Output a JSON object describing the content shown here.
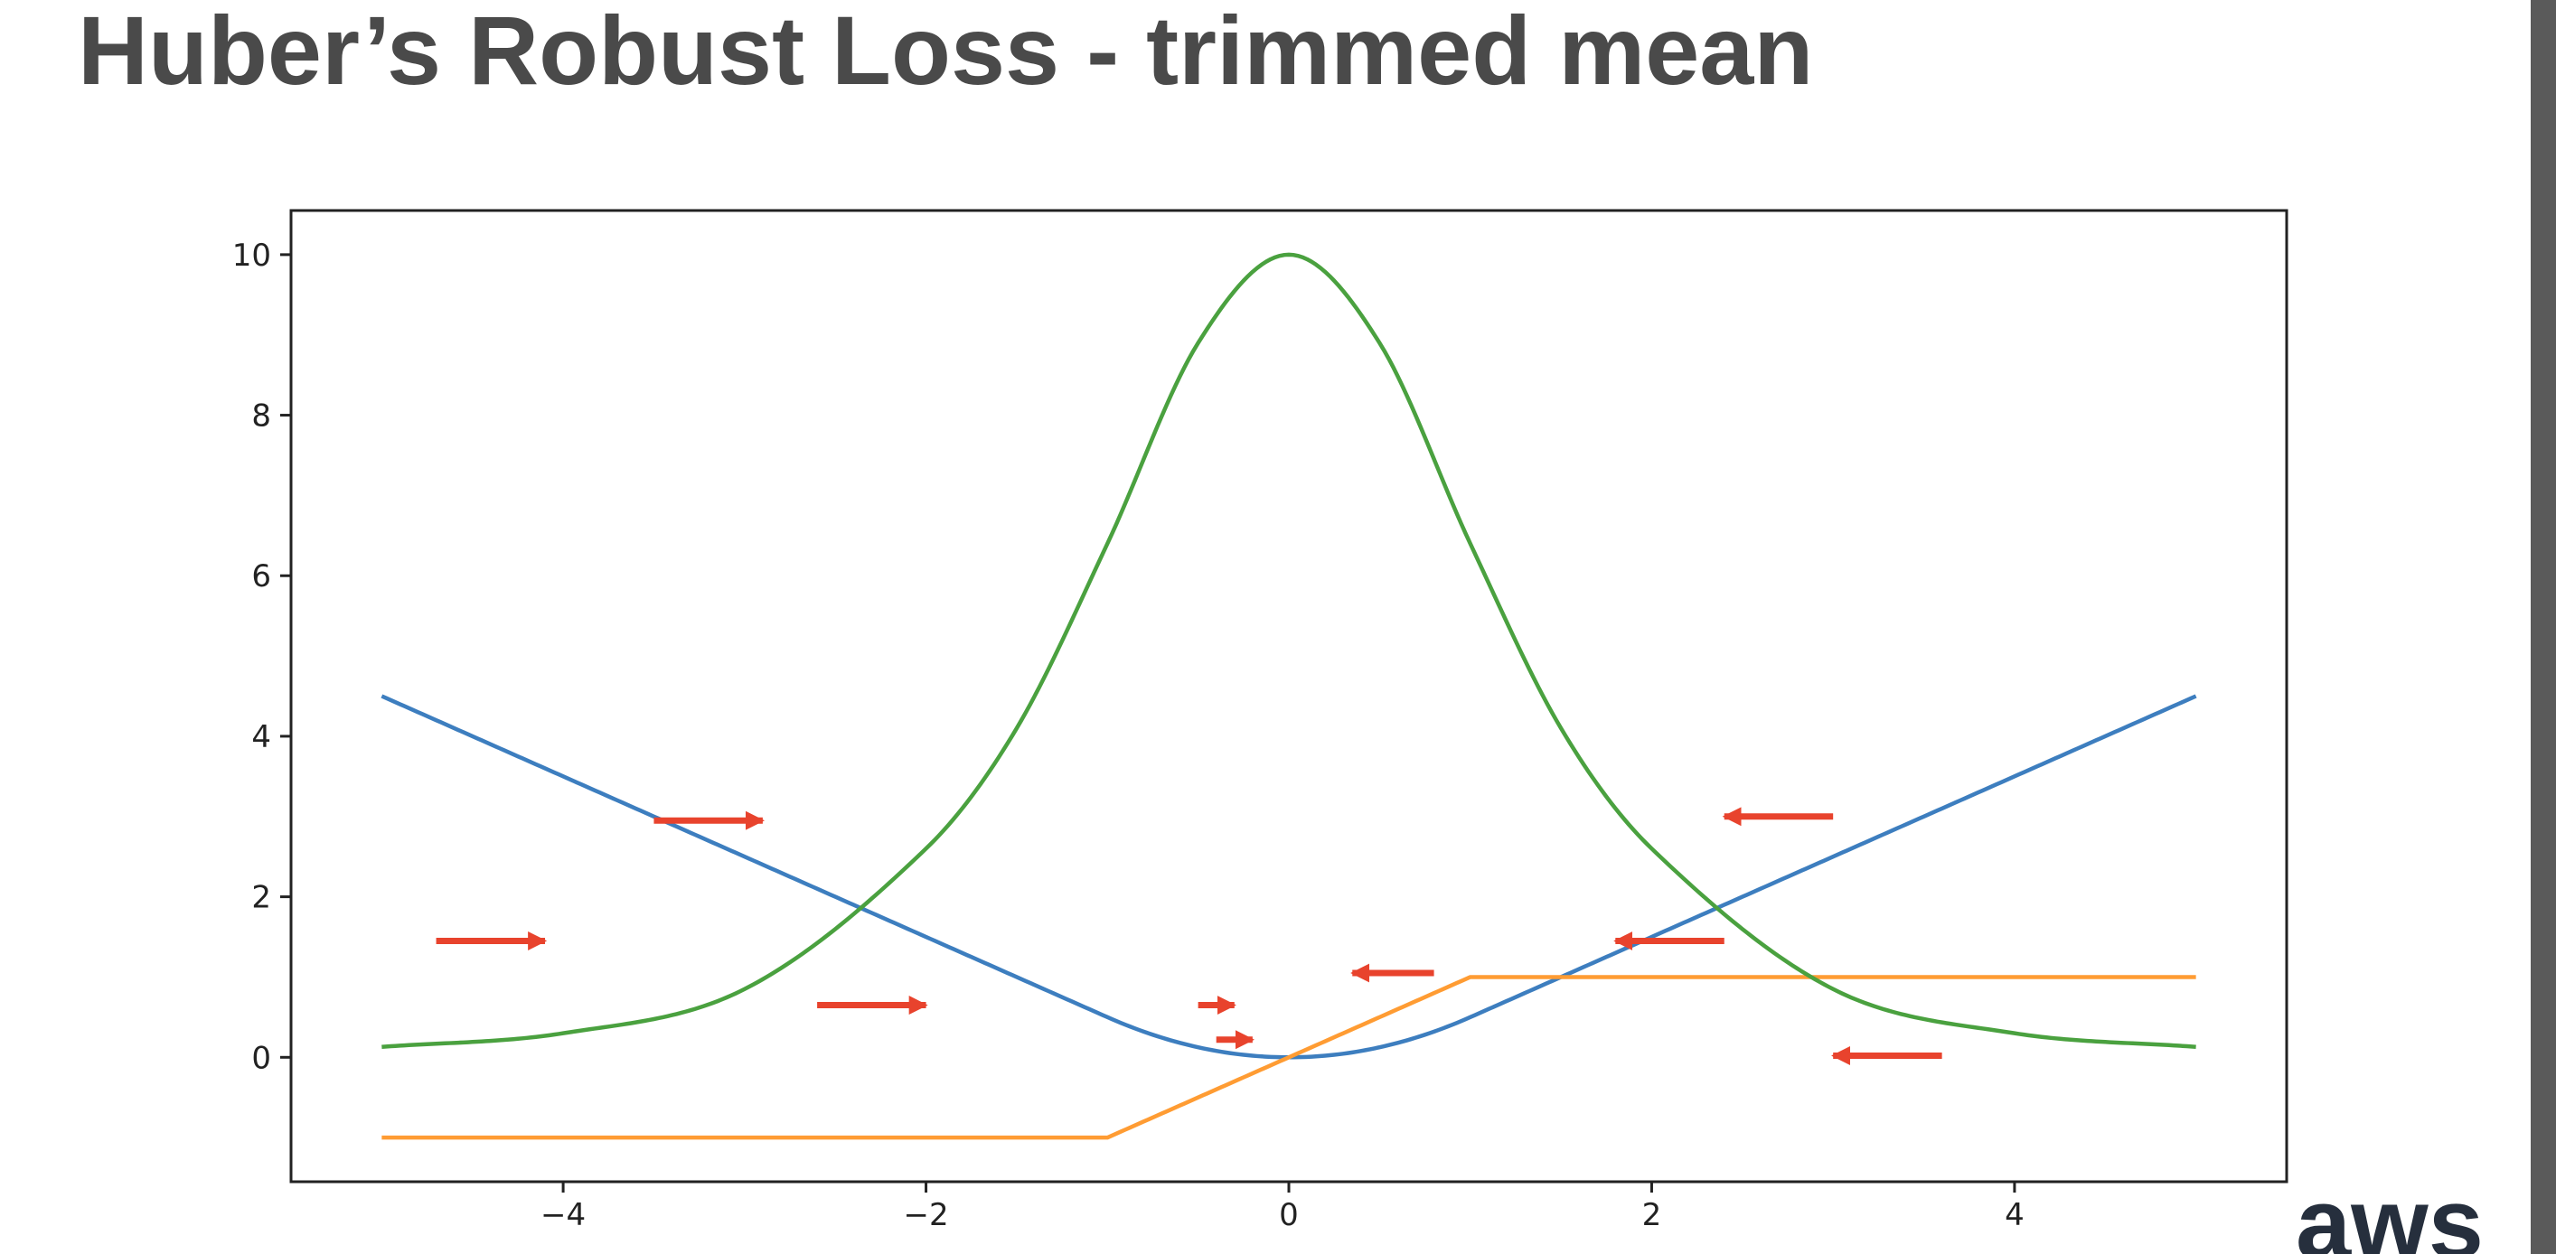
{
  "slide": {
    "title": "Huber’s Robust Loss - trimmed mean",
    "logo_text": "aws"
  },
  "chart_data": {
    "type": "line",
    "title": "",
    "xlabel": "",
    "ylabel": "",
    "xlim": [
      -5.5,
      5.5
    ],
    "ylim": [
      -1.55,
      10.55
    ],
    "grid": false,
    "x_ticks": [
      -4,
      -2,
      0,
      2,
      4
    ],
    "y_ticks": [
      0,
      2,
      4,
      6,
      8,
      10
    ],
    "x_tick_labels": [
      "−4",
      "−2",
      "0",
      "2",
      "4"
    ],
    "y_tick_labels": [
      "0",
      "2",
      "4",
      "6",
      "8",
      "10"
    ],
    "series": [
      {
        "function": "huber_loss",
        "delta": 1,
        "domain": [
          -5,
          5
        ],
        "color": "#3d7ebf",
        "x": [
          -5,
          -4,
          -3,
          -2,
          -1,
          -0.5,
          0,
          0.5,
          1,
          2,
          3,
          4,
          5
        ],
        "y": [
          4.5,
          3.5,
          2.5,
          1.5,
          0.5,
          0.125,
          0,
          0.125,
          0.5,
          1.5,
          2.5,
          3.5,
          4.5
        ]
      },
      {
        "function": "huber_derivative",
        "delta": 1,
        "domain": [
          -5,
          5
        ],
        "color": "#ff9c33",
        "x": [
          -5,
          -1,
          1,
          5
        ],
        "y": [
          -1,
          -1,
          1,
          1
        ]
      },
      {
        "function": "peak_curve",
        "peak": 10,
        "domain": [
          -5,
          5
        ],
        "color": "#4aa13f",
        "x": [
          -5,
          -4,
          -3,
          -2,
          -1.5,
          -1,
          -0.5,
          0,
          0.5,
          1,
          1.5,
          2,
          3,
          4,
          5
        ],
        "y": [
          0.13,
          0.3,
          0.85,
          2.6,
          4.1,
          6.4,
          8.9,
          10,
          8.9,
          6.4,
          4.1,
          2.6,
          0.85,
          0.3,
          0.13
        ]
      }
    ],
    "arrows": {
      "color": "#e8432d",
      "items": [
        {
          "x": -3.5,
          "y": 2.95,
          "dx": 0.6
        },
        {
          "x": -4.7,
          "y": 1.45,
          "dx": 0.6
        },
        {
          "x": -2.6,
          "y": 0.65,
          "dx": 0.6
        },
        {
          "x": -0.5,
          "y": 0.65,
          "dx": 0.2
        },
        {
          "x": -0.4,
          "y": 0.22,
          "dx": 0.2
        },
        {
          "x": 0.8,
          "y": 1.05,
          "dx": -0.45
        },
        {
          "x": 3.0,
          "y": 3.0,
          "dx": -0.6
        },
        {
          "x": 2.4,
          "y": 1.45,
          "dx": -0.6
        },
        {
          "x": 3.6,
          "y": 0.02,
          "dx": -0.6
        }
      ]
    }
  }
}
